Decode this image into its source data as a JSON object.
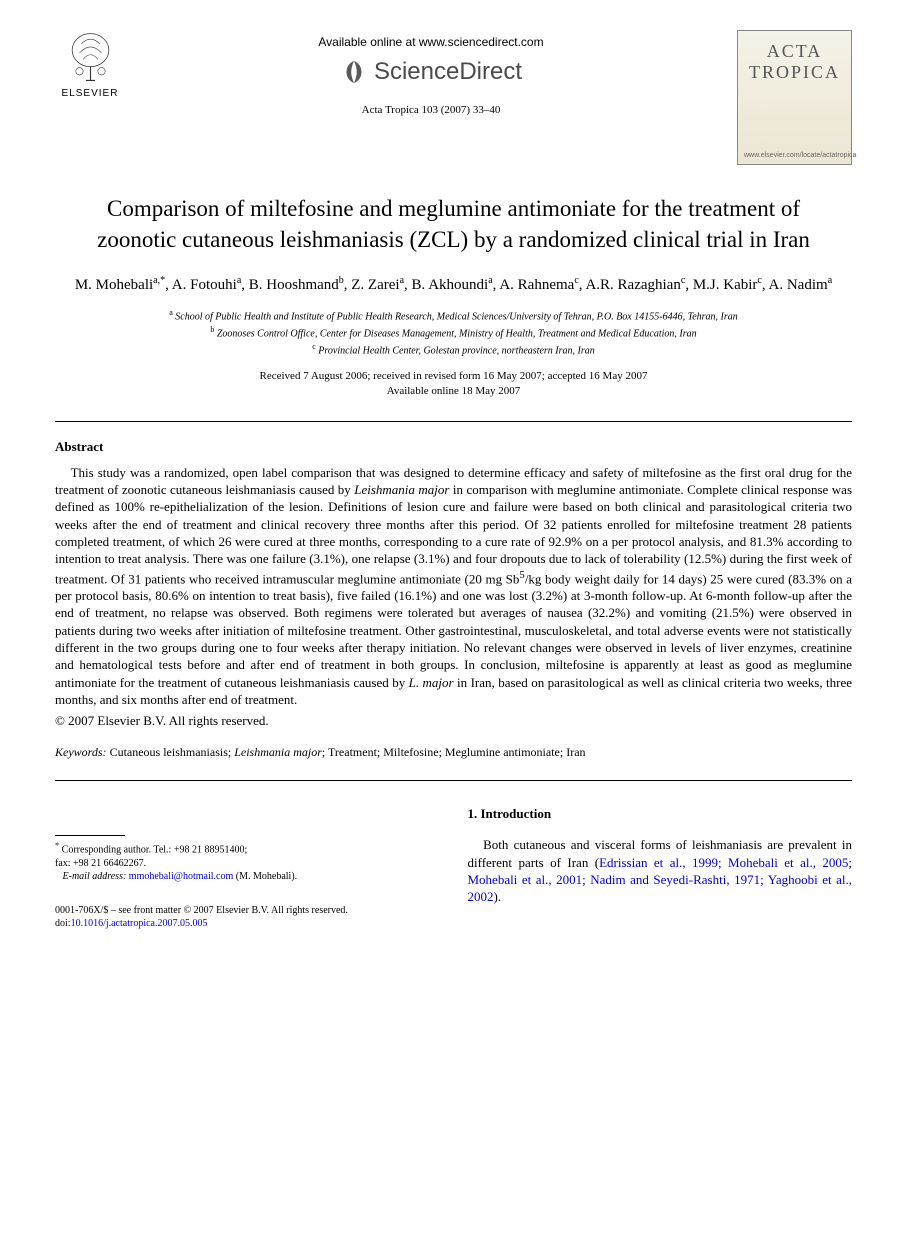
{
  "header": {
    "elsevier_label": "ELSEVIER",
    "available_online": "Available online at www.sciencedirect.com",
    "sciencedirect_label": "ScienceDirect",
    "citation": "Acta Tropica 103 (2007) 33–40",
    "journal_cover_title_1": "ACTA",
    "journal_cover_title_2": "TROPICA",
    "journal_cover_url": "www.elsevier.com/locate/actatropica"
  },
  "title": "Comparison of miltefosine and meglumine antimoniate for the treatment of zoonotic cutaneous leishmaniasis (ZCL) by a randomized clinical trial in Iran",
  "authors_html": "M. Mohebali<sup>a,*</sup>, A. Fotouhi<sup>a</sup>, B. Hooshmand<sup>b</sup>, Z. Zarei<sup>a</sup>, B. Akhoundi<sup>a</sup>, A. Rahnema<sup>c</sup>, A.R. Razaghian<sup>c</sup>, M.J. Kabir<sup>c</sup>, A. Nadim<sup>a</sup>",
  "affiliations": {
    "a": "School of Public Health and Institute of Public Health Research, Medical Sciences/University of Tehran, P.O. Box 14155-6446, Tehran, Iran",
    "b": "Zoonoses Control Office, Center for Diseases Management, Ministry of Health, Treatment and Medical Education, Iran",
    "c": "Provincial Health Center, Golestan province, northeastern Iran, Iran"
  },
  "dates": {
    "received": "Received 7 August 2006; received in revised form 16 May 2007; accepted 16 May 2007",
    "available": "Available online 18 May 2007"
  },
  "abstract": {
    "heading": "Abstract",
    "body": "This study was a randomized, open label comparison that was designed to determine efficacy and safety of miltefosine as the first oral drug for the treatment of zoonotic cutaneous leishmaniasis caused by <span class=\"ital\">Leishmania major</span> in comparison with meglumine antimoniate. Complete clinical response was defined as 100% re-epithelialization of the lesion. Definitions of lesion cure and failure were based on both clinical and parasitological criteria two weeks after the end of treatment and clinical recovery three months after this period. Of 32 patients enrolled for miltefosine treatment 28 patients completed treatment, of which 26 were cured at three months, corresponding to a cure rate of 92.9% on a per protocol analysis, and 81.3% according to intention to treat analysis. There was one failure (3.1%), one relapse (3.1%) and four dropouts due to lack of tolerability (12.5%) during the first week of treatment. Of 31 patients who received intramuscular meglumine antimoniate (20 mg Sb<sup>5</sup>/kg body weight daily for 14 days) 25 were cured (83.3% on a per protocol basis, 80.6% on intention to treat basis), five failed (16.1%) and one was lost (3.2%) at 3-month follow-up. At 6-month follow-up after the end of treatment, no relapse was observed. Both regimens were tolerated but averages of nausea (32.2%) and vomiting (21.5%) were observed in patients during two weeks after initiation of miltefosine treatment. Other gastrointestinal, musculoskeletal, and total adverse events were not statistically different in the two groups during one to four weeks after therapy initiation. No relevant changes were observed in levels of liver enzymes, creatinine and hematological tests before and after end of treatment in both groups. In conclusion, miltefosine is apparently at least as good as meglumine antimoniate for the treatment of cutaneous leishmaniasis caused by <span class=\"ital\">L. major</span> in Iran, based on parasitological as well as clinical criteria two weeks, three months, and six months after end of treatment.",
    "copyright": "© 2007 Elsevier B.V. All rights reserved."
  },
  "keywords": {
    "label": "Keywords:",
    "text": "Cutaneous leishmaniasis; <span class=\"ital\">Leishmania major</span>; Treatment; Miltefosine; Meglumine antimoniate; Iran"
  },
  "intro": {
    "heading": "1.  Introduction",
    "para": "Both cutaneous and visceral forms of leishmaniasis are prevalent in different parts of Iran (<span class=\"ref\">Edrissian et al., 1999; Mohebali et al., 2005; Mohebali et al., 2001; Nadim and Seyedi-Rashti, 1971; Yaghoobi et al., 2002</span>)."
  },
  "footnotes": {
    "corr": "Corresponding author. Tel.: +98 21 88951400;",
    "fax": "fax: +98 21 66462267.",
    "email_label": "E-mail address:",
    "email": "mmohebali@hotmail.com",
    "email_who": "(M. Mohebali)."
  },
  "footer": {
    "line1": "0001-706X/$ – see front matter © 2007 Elsevier B.V. All rights reserved.",
    "doi_label": "doi:",
    "doi": "10.1016/j.actatropica.2007.05.005"
  },
  "colors": {
    "link": "#0000cc",
    "text": "#000000",
    "cover_bg_top": "#f5f2e8",
    "cover_bg_bottom": "#ebe6d4"
  }
}
